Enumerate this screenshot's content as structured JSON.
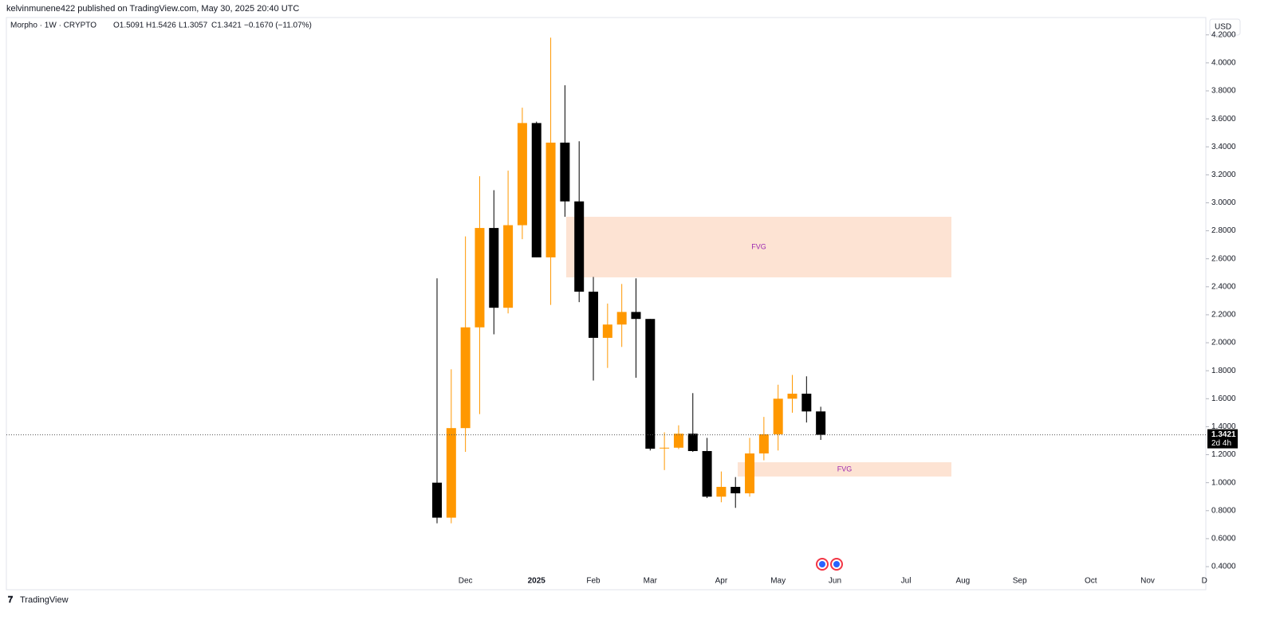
{
  "header": "kelvinmunene422 published on TradingView.com, May 30, 2025 20:40 UTC",
  "legend": {
    "symbol": "Morpho · 1W · CRYPTO",
    "open": "O1.5091",
    "high": "H1.5426",
    "low": "L1.3057",
    "close": "C1.3421",
    "change": "−0.1670 (−11.07%)"
  },
  "currency": "USD",
  "countdown": "2d 4h",
  "brand": "TradingView",
  "chart_data": {
    "type": "candlestick",
    "categories": [
      null,
      null,
      "Dec",
      null,
      null,
      null,
      null,
      "2025",
      null,
      null,
      null,
      "Feb",
      null,
      null,
      null,
      "Mar",
      null,
      null,
      null,
      null,
      "Apr",
      null,
      null,
      null,
      "May",
      null,
      null,
      null,
      "Jun",
      null,
      null,
      null,
      null,
      "Jul",
      null,
      null,
      null,
      "Aug",
      null,
      null,
      null,
      "Sep",
      null,
      null,
      null,
      null,
      "Oct",
      null,
      null,
      null,
      "Nov",
      null,
      null,
      null,
      "D"
    ],
    "open": [
      1.0,
      0.75,
      1.39,
      2.11,
      2.82,
      2.25,
      2.84,
      3.57,
      2.61,
      3.43,
      3.01,
      2.365,
      2.035,
      2.13,
      2.22,
      2.17,
      1.245,
      1.25,
      1.35,
      1.226,
      0.9,
      0.97,
      0.924,
      1.209,
      1.346,
      1.6,
      1.636,
      1.5091,
      null,
      null,
      null,
      null,
      null,
      null,
      null,
      null,
      null,
      null,
      null,
      null,
      null,
      null,
      null,
      null,
      null,
      null,
      null,
      null,
      null,
      null,
      null,
      null,
      null,
      null,
      null
    ],
    "high": [
      2.46,
      1.81,
      2.76,
      3.19,
      3.09,
      3.23,
      3.68,
      3.58,
      4.18,
      3.84,
      3.44,
      2.47,
      2.28,
      2.42,
      2.46,
      2.17,
      1.36,
      1.41,
      1.64,
      1.32,
      1.08,
      1.04,
      1.32,
      1.47,
      1.7,
      1.77,
      1.76,
      1.5426,
      null,
      null,
      null,
      null,
      null,
      null,
      null,
      null,
      null,
      null,
      null,
      null,
      null,
      null,
      null,
      null,
      null,
      null,
      null,
      null,
      null,
      null,
      null,
      null,
      null,
      null,
      null
    ],
    "low": [
      0.71,
      0.71,
      1.22,
      1.49,
      2.06,
      2.21,
      2.74,
      2.61,
      2.27,
      2.9,
      2.29,
      1.73,
      1.82,
      1.97,
      1.75,
      1.23,
      1.09,
      1.24,
      1.22,
      0.89,
      0.86,
      0.82,
      0.9,
      1.16,
      1.23,
      1.5,
      1.43,
      1.3057,
      null,
      null,
      null,
      null,
      null,
      null,
      null,
      null,
      null,
      null,
      null,
      null,
      null,
      null,
      null,
      null,
      null,
      null,
      null,
      null,
      null,
      null,
      null,
      null,
      null,
      null,
      null
    ],
    "close": [
      0.75,
      1.39,
      2.11,
      2.82,
      2.25,
      2.84,
      3.57,
      2.61,
      3.43,
      3.01,
      2.365,
      2.035,
      2.13,
      2.22,
      2.17,
      1.243,
      1.25,
      1.35,
      1.226,
      0.9,
      0.97,
      0.924,
      1.209,
      1.346,
      1.6,
      1.636,
      1.509,
      1.3421,
      null,
      null,
      null,
      null,
      null,
      null,
      null,
      null,
      null,
      null,
      null,
      null,
      null,
      null,
      null,
      null,
      null,
      null,
      null,
      null,
      null,
      null,
      null,
      null,
      null,
      null,
      null
    ],
    "up_color": "#ff9800",
    "down_color": "#000000",
    "ylim": [
      0.235,
      4.21
    ],
    "yticks": [
      {
        "value": 0.4,
        "label": "0.4000"
      },
      {
        "value": 0.6,
        "label": "0.6000"
      },
      {
        "value": 0.8,
        "label": "0.8000"
      },
      {
        "value": 1.0,
        "label": "1.0000"
      },
      {
        "value": 1.2,
        "label": "1.2000"
      },
      {
        "value": 1.4,
        "label": "1.4000"
      },
      {
        "value": 1.6,
        "label": "1.6000"
      },
      {
        "value": 1.8,
        "label": "1.8000"
      },
      {
        "value": 2.0,
        "label": "2.0000"
      },
      {
        "value": 2.2,
        "label": "2.2000"
      },
      {
        "value": 2.4,
        "label": "2.4000"
      },
      {
        "value": 2.6,
        "label": "2.6000"
      },
      {
        "value": 2.8,
        "label": "2.8000"
      },
      {
        "value": 3.0,
        "label": "3.0000"
      },
      {
        "value": 3.2,
        "label": "3.2000"
      },
      {
        "value": 3.4,
        "label": "3.4000"
      },
      {
        "value": 3.6,
        "label": "3.6000"
      },
      {
        "value": 3.8,
        "label": "3.8000"
      },
      {
        "value": 4.0,
        "label": "4.0000"
      },
      {
        "value": 4.2,
        "label": "4.2000"
      }
    ],
    "last_price": {
      "value": 1.3421,
      "label": "1.3421"
    },
    "zones": [
      {
        "label": "FVG",
        "top": 2.9,
        "bottom": 2.467,
        "color": "#fde3d3"
      },
      {
        "label": "FVG",
        "top": 1.146,
        "bottom": 1.044,
        "color": "#fde3d3"
      }
    ],
    "zone_label_color": "#9c27b0"
  }
}
